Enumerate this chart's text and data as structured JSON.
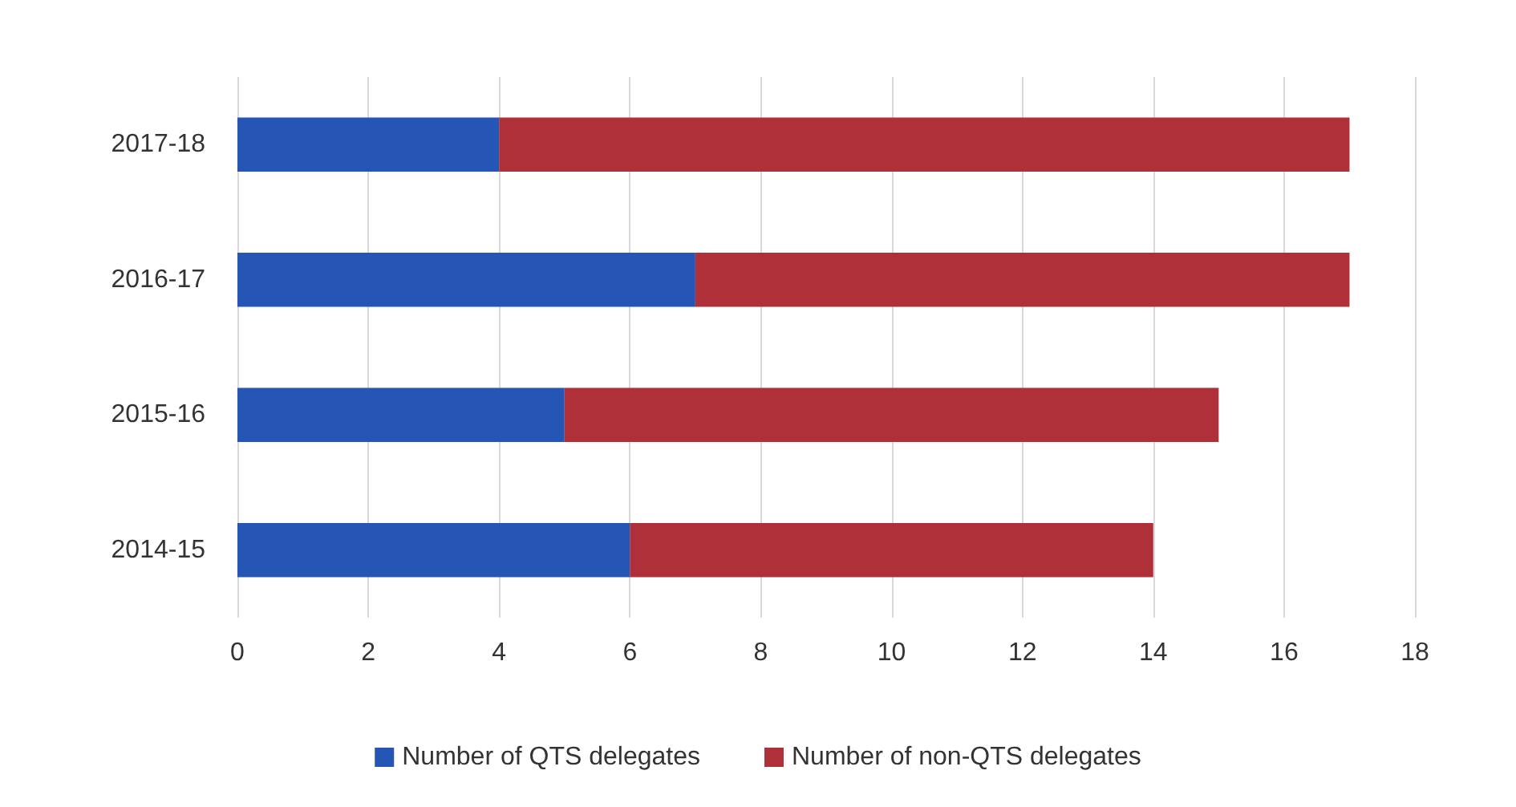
{
  "chart_data": {
    "type": "bar",
    "orientation": "horizontal",
    "stacked": true,
    "categories": [
      "2017-18",
      "2016-17",
      "2015-16",
      "2014-15"
    ],
    "series": [
      {
        "name": "Number of QTS delegates",
        "color": "#2656b5",
        "values": [
          4,
          7,
          5,
          6
        ]
      },
      {
        "name": "Number of non-QTS delegates",
        "color": "#b0303a",
        "values": [
          13,
          10,
          10,
          8
        ]
      }
    ],
    "xlim": [
      0,
      18
    ],
    "xticks": [
      0,
      2,
      4,
      6,
      8,
      10,
      12,
      14,
      16,
      18
    ],
    "grid": "x",
    "legend": "bottom"
  }
}
